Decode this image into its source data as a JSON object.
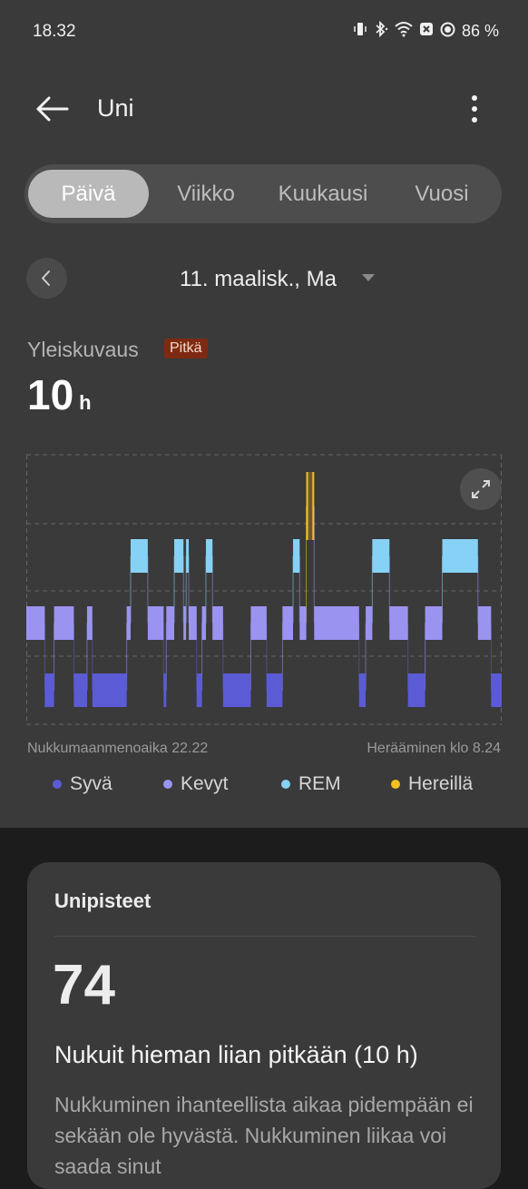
{
  "status_bar": {
    "time": "18.32",
    "battery": "86 %",
    "icons": [
      "vibrate-icon",
      "bluetooth-icon",
      "wifi-icon",
      "nfc-icon",
      "sync-icon"
    ]
  },
  "header": {
    "title": "Uni",
    "back_icon": "arrow-left-icon",
    "more_icon": "more-vertical-icon"
  },
  "tabs": [
    {
      "label": "Päivä",
      "active": true
    },
    {
      "label": "Viikko",
      "active": false
    },
    {
      "label": "Kuukausi",
      "active": false
    },
    {
      "label": "Vuosi",
      "active": false
    }
  ],
  "date_nav": {
    "label": "11. maalisk., Ma"
  },
  "overview": {
    "label": "Yleiskuvaus",
    "badge": "Pitkä",
    "duration_value": "10",
    "duration_unit": "h",
    "bedtime": "Nukkumaanmenoaika 22.22",
    "wake": "Herääminen klo 8.24"
  },
  "chart_data": {
    "type": "area",
    "x_start": "22.22",
    "x_end": "8.24",
    "stages_top_to_bottom": [
      "Hereillä",
      "REM",
      "Kevyt",
      "Syvä"
    ],
    "segments": [
      {
        "from": 0.0,
        "to": 7.0,
        "stage": "Kevyt"
      },
      {
        "from": 7.0,
        "to": 10.5,
        "stage": "Syvä"
      },
      {
        "from": 10.5,
        "to": 18.0,
        "stage": "Kevyt"
      },
      {
        "from": 18.0,
        "to": 23.0,
        "stage": "Syvä"
      },
      {
        "from": 23.0,
        "to": 25.0,
        "stage": "Kevyt"
      },
      {
        "from": 25.0,
        "to": 38.0,
        "stage": "Syvä"
      },
      {
        "from": 38.0,
        "to": 39.5,
        "stage": "Kevyt"
      },
      {
        "from": 39.5,
        "to": 46.0,
        "stage": "REM"
      },
      {
        "from": 46.0,
        "to": 52.0,
        "stage": "Kevyt"
      },
      {
        "from": 52.0,
        "to": 53.0,
        "stage": "Syvä"
      },
      {
        "from": 53.0,
        "to": 56.0,
        "stage": "Kevyt"
      },
      {
        "from": 56.0,
        "to": 59.5,
        "stage": "REM"
      },
      {
        "from": 59.5,
        "to": 60.5,
        "stage": "Kevyt"
      },
      {
        "from": 60.5,
        "to": 61.5,
        "stage": "REM"
      },
      {
        "from": 61.5,
        "to": 64.5,
        "stage": "Kevyt"
      },
      {
        "from": 64.5,
        "to": 66.5,
        "stage": "Syvä"
      },
      {
        "from": 66.5,
        "to": 68.0,
        "stage": "Kevyt"
      },
      {
        "from": 68.0,
        "to": 70.5,
        "stage": "REM"
      },
      {
        "from": 70.5,
        "to": 74.5,
        "stage": "Kevyt"
      },
      {
        "from": 74.5,
        "to": 85.0,
        "stage": "Syvä"
      },
      {
        "from": 85.0,
        "to": 91.0,
        "stage": "Kevyt"
      },
      {
        "from": 91.0,
        "to": 97.0,
        "stage": "Syvä"
      },
      {
        "from": 97.0,
        "to": 101.0,
        "stage": "Kevyt"
      },
      {
        "from": 101.0,
        "to": 103.5,
        "stage": "REM"
      },
      {
        "from": 103.5,
        "to": 106.0,
        "stage": "Kevyt"
      },
      {
        "from": 106.0,
        "to": 109.0,
        "stage": "Hereillä"
      },
      {
        "from": 109.0,
        "to": 126.0,
        "stage": "Kevyt"
      },
      {
        "from": 126.0,
        "to": 128.5,
        "stage": "Syvä"
      },
      {
        "from": 128.5,
        "to": 131.0,
        "stage": "Kevyt"
      },
      {
        "from": 131.0,
        "to": 137.5,
        "stage": "REM"
      },
      {
        "from": 137.5,
        "to": 144.5,
        "stage": "Kevyt"
      },
      {
        "from": 144.5,
        "to": 151.0,
        "stage": "Syvä"
      },
      {
        "from": 151.0,
        "to": 157.5,
        "stage": "Kevyt"
      },
      {
        "from": 157.5,
        "to": 171.0,
        "stage": "REM"
      },
      {
        "from": 171.0,
        "to": 176.0,
        "stage": "Kevyt"
      },
      {
        "from": 176.0,
        "to": 180.0,
        "stage": "Syvä"
      }
    ],
    "x_domain": [
      0,
      180
    ],
    "grid": true
  },
  "legend": [
    {
      "label": "Syvä",
      "color": "#5b5bd6"
    },
    {
      "label": "Kevyt",
      "color": "#9a94f0"
    },
    {
      "label": "REM",
      "color": "#86d1f6"
    },
    {
      "label": "Hereillä",
      "color": "#f3bf21"
    }
  ],
  "score_card": {
    "title": "Unipisteet",
    "score": "74",
    "headline": "Nukuit hieman liian pitkään (10 h)",
    "description": "Nukkuminen ihanteellista aikaa pidempään ei sekään ole hyvästä. Nukkuminen liikaa voi saada sinut"
  }
}
